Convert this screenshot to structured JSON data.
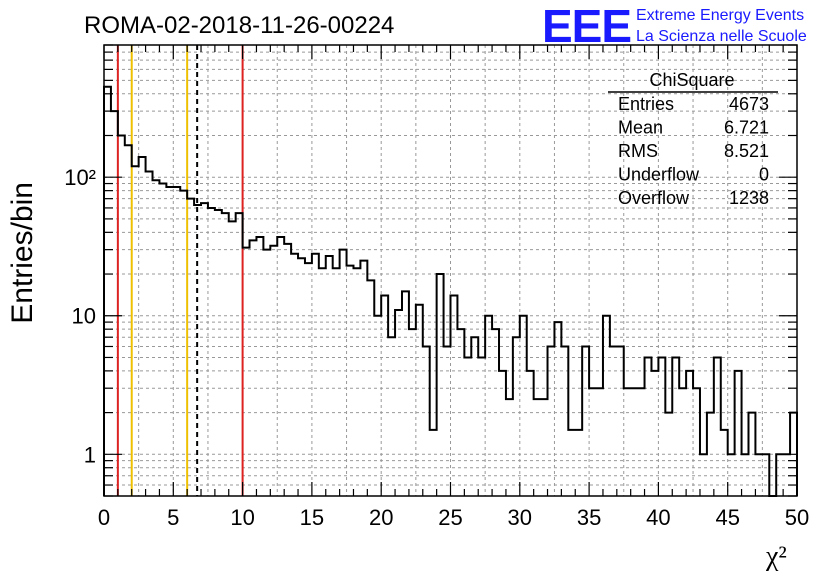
{
  "chart_data": {
    "type": "histogram",
    "title": "ROMA-02-2018-11-26-00224",
    "xlabel": "χ²",
    "ylabel": "Entries/bin",
    "xlim": [
      0,
      50
    ],
    "ylim": [
      0.5,
      900
    ],
    "y_scale": "log",
    "grid": true,
    "x_ticks": [
      "0",
      "5",
      "10",
      "15",
      "20",
      "25",
      "30",
      "35",
      "40",
      "45",
      "50"
    ],
    "y_ticks": [
      "1",
      "10",
      "10²"
    ],
    "bin_width": 0.5,
    "values": [
      450,
      300,
      200,
      170,
      120,
      140,
      110,
      95,
      90,
      85,
      85,
      80,
      70,
      63,
      65,
      60,
      58,
      55,
      48,
      55,
      31,
      35,
      37,
      30,
      32,
      37,
      33,
      28,
      26,
      24,
      28,
      22,
      27,
      22,
      30,
      23,
      22,
      25,
      18,
      10,
      14,
      7,
      11,
      15,
      8,
      12,
      6,
      1.5,
      20,
      6,
      14,
      8,
      5,
      7,
      5,
      10,
      8,
      4,
      2.5,
      7,
      10,
      4,
      2.5,
      2.5,
      6,
      9,
      6,
      1.5,
      1.5,
      6,
      3,
      3,
      10,
      6,
      6,
      3,
      3,
      3,
      5,
      4,
      5,
      2,
      5,
      3,
      4,
      3,
      1,
      2,
      5,
      1.5,
      1,
      4,
      1,
      2,
      1,
      1,
      0.5,
      1,
      1,
      2
    ],
    "vertical_lines": [
      {
        "x": 1.0,
        "color": "#dd2222",
        "style": "solid"
      },
      {
        "x": 2.0,
        "color": "#eec000",
        "style": "solid"
      },
      {
        "x": 6.0,
        "color": "#eec000",
        "style": "solid"
      },
      {
        "x": 6.721,
        "color": "#000000",
        "style": "dashed"
      },
      {
        "x": 10.0,
        "color": "#dd2222",
        "style": "solid"
      }
    ]
  },
  "stats_box": {
    "title": "ChiSquare",
    "rows": [
      {
        "label": "Entries",
        "value": "4673"
      },
      {
        "label": "Mean",
        "value": "6.721"
      },
      {
        "label": "RMS",
        "value": "8.521"
      },
      {
        "label": "Underflow",
        "value": "0"
      },
      {
        "label": "Overflow",
        "value": "1238"
      }
    ]
  },
  "logo": {
    "mark": "EEE",
    "line1": "Extreme Energy Events",
    "line2": "La Scienza nelle Scuole",
    "color": "#1a1aff"
  }
}
